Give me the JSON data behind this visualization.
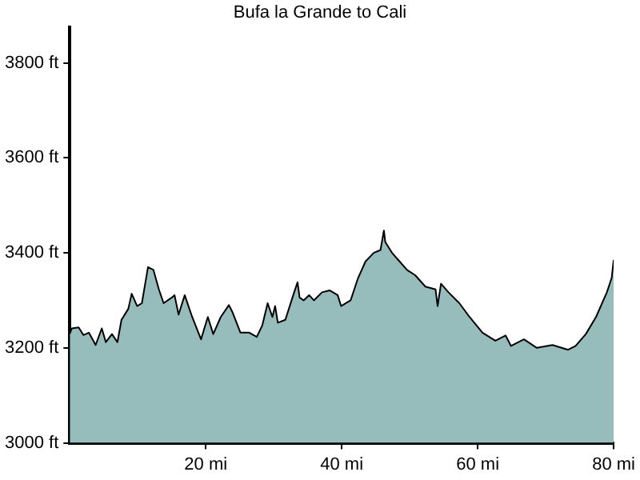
{
  "chart_data": {
    "type": "area",
    "title": "Bufa la Grande to Cali",
    "xlim": [
      0,
      80
    ],
    "ylim": [
      3000,
      3875
    ],
    "xticks": [
      {
        "value": 20,
        "label": "20 mi"
      },
      {
        "value": 40,
        "label": "40 mi"
      },
      {
        "value": 60,
        "label": "60 mi"
      },
      {
        "value": 80,
        "label": "80 mi"
      }
    ],
    "yticks": [
      {
        "value": 3000,
        "label": "3000 ft"
      },
      {
        "value": 3200,
        "label": "3200 ft"
      },
      {
        "value": 3400,
        "label": "3400 ft"
      },
      {
        "value": 3600,
        "label": "3600 ft"
      },
      {
        "value": 3800,
        "label": "3800 ft"
      }
    ],
    "grid": false,
    "legend": false,
    "series": [
      {
        "color": "#97bcbc",
        "x": [
          0,
          0.3,
          1.3,
          2.0,
          2.8,
          3.8,
          4.7,
          5.3,
          6.2,
          7.0,
          7.6,
          8.6,
          9.1,
          9.9,
          10.6,
          11.5,
          12.3,
          13.1,
          13.8,
          15.0,
          15.4,
          16.0,
          16.9,
          18.0,
          19.3,
          20.3,
          21.1,
          22.2,
          23.4,
          23.9,
          25.1,
          26.4,
          27.5,
          28.3,
          29.1,
          29.8,
          30.2,
          30.6,
          31.7,
          33.0,
          33.5,
          33.8,
          34.4,
          35.2,
          35.9,
          37.1,
          38.2,
          39.4,
          39.9,
          41.3,
          42.4,
          43.5,
          44.7,
          45.7,
          46.2,
          46.4,
          47.4,
          48.5,
          49.6,
          50.8,
          52.3,
          53.8,
          54.1,
          54.6,
          55.7,
          57.3,
          58.8,
          60.7,
          62.6,
          64.1,
          64.9,
          66.8,
          68.7,
          71.0,
          73.3,
          74.4,
          75.9,
          77.4,
          79.0,
          79.7,
          80.0
        ],
        "values": [
          3230,
          3241,
          3243,
          3227,
          3232,
          3206,
          3241,
          3212,
          3229,
          3212,
          3259,
          3282,
          3314,
          3288,
          3294,
          3370,
          3364,
          3323,
          3294,
          3306,
          3311,
          3270,
          3311,
          3265,
          3218,
          3265,
          3229,
          3265,
          3290,
          3276,
          3232,
          3232,
          3223,
          3247,
          3294,
          3265,
          3288,
          3253,
          3259,
          3317,
          3338,
          3306,
          3300,
          3311,
          3300,
          3317,
          3321,
          3311,
          3288,
          3300,
          3347,
          3382,
          3400,
          3406,
          3447,
          3423,
          3400,
          3382,
          3364,
          3353,
          3329,
          3323,
          3288,
          3335,
          3317,
          3294,
          3265,
          3232,
          3215,
          3226,
          3204,
          3218,
          3200,
          3206,
          3196,
          3204,
          3229,
          3265,
          3317,
          3347,
          3385
        ]
      }
    ]
  }
}
